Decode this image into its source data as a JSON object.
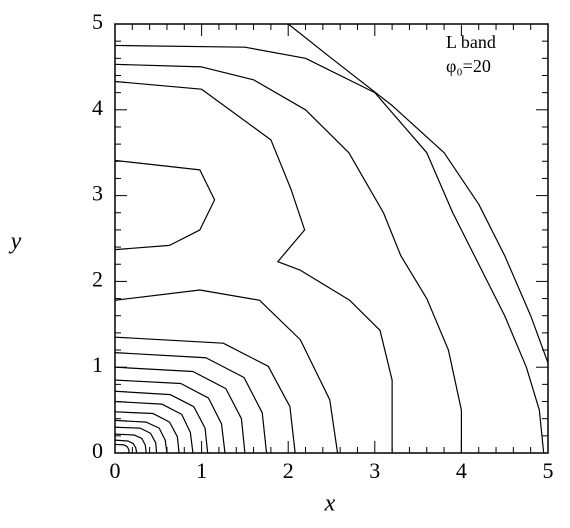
{
  "chart_data": {
    "type": "contour",
    "x_label": "x",
    "y_label": "y",
    "annotations": [
      "L band",
      "φ₀=20"
    ],
    "xlim": [
      0,
      5
    ],
    "ylim": [
      0,
      5
    ],
    "xticks": [
      0,
      1,
      2,
      3,
      4,
      5
    ],
    "yticks": [
      0,
      1,
      2,
      3,
      4,
      5
    ],
    "minor_per_major": 4,
    "color": "#000000",
    "series": [
      {
        "x": [
          2.0,
          2.5,
          3.2,
          3.8,
          4.2,
          4.5,
          4.8,
          5.0
        ],
        "values": [
          5.0,
          4.6,
          4.05,
          3.5,
          2.9,
          2.3,
          1.6,
          1.05
        ]
      },
      {
        "x": [
          0,
          1.5,
          2.2,
          3.0,
          3.6,
          3.9,
          4.2,
          4.5,
          4.75,
          4.9,
          4.95
        ],
        "values": [
          4.75,
          4.73,
          4.6,
          4.2,
          3.5,
          2.8,
          2.2,
          1.6,
          1.0,
          0.5,
          0
        ]
      },
      {
        "x": [
          0,
          1.0,
          1.6,
          2.2,
          2.7,
          3.1,
          3.3,
          3.6,
          3.85,
          4.0,
          4.0
        ],
        "values": [
          4.53,
          4.5,
          4.35,
          4.0,
          3.5,
          2.8,
          2.3,
          1.8,
          1.2,
          0.5,
          0
        ]
      },
      {
        "x": [
          0,
          1.0,
          1.8,
          2.03,
          2.19,
          1.88,
          2.14,
          2.71,
          3.06,
          3.2,
          3.2
        ],
        "values": [
          4.33,
          4.24,
          3.65,
          3.08,
          2.6,
          2.23,
          2.13,
          1.78,
          1.43,
          0.85,
          0
        ]
      },
      {
        "x": [
          0,
          0.98,
          1.15,
          0.98,
          0.63,
          0
        ],
        "values": [
          3.41,
          3.3,
          2.95,
          2.6,
          2.42,
          2.37
        ]
      },
      {
        "x": [
          0,
          0.98,
          1.67,
          2.14,
          2.48,
          2.57
        ],
        "values": [
          1.78,
          1.9,
          1.78,
          1.32,
          0.62,
          0
        ]
      },
      {
        "x": [
          0,
          1.25,
          1.77,
          2.02,
          2.08
        ],
        "values": [
          1.35,
          1.28,
          1.01,
          0.54,
          0
        ]
      },
      {
        "x": [
          0,
          1.05,
          1.49,
          1.7,
          1.75
        ],
        "values": [
          1.17,
          1.11,
          0.88,
          0.47,
          0
        ]
      },
      {
        "x": [
          0,
          0.9,
          1.28,
          1.46,
          1.5
        ],
        "values": [
          1.0,
          0.95,
          0.75,
          0.4,
          0
        ]
      },
      {
        "x": [
          0,
          0.76,
          1.08,
          1.23,
          1.27
        ],
        "values": [
          0.85,
          0.81,
          0.64,
          0.34,
          0
        ]
      },
      {
        "x": [
          0,
          0.64,
          0.91,
          1.04,
          1.07
        ],
        "values": [
          0.72,
          0.68,
          0.54,
          0.29,
          0
        ]
      },
      {
        "x": [
          0,
          0.54,
          0.77,
          0.87,
          0.9
        ],
        "values": [
          0.6,
          0.57,
          0.45,
          0.24,
          0
        ]
      },
      {
        "x": [
          0,
          0.44,
          0.63,
          0.72,
          0.74
        ],
        "values": [
          0.48,
          0.46,
          0.36,
          0.19,
          0
        ]
      },
      {
        "x": [
          0,
          0.36,
          0.51,
          0.58,
          0.6
        ],
        "values": [
          0.38,
          0.36,
          0.29,
          0.15,
          0
        ]
      },
      {
        "x": [
          0,
          0.29,
          0.41,
          0.47,
          0.48
        ],
        "values": [
          0.3,
          0.29,
          0.23,
          0.12,
          0
        ]
      },
      {
        "x": [
          0,
          0.22,
          0.31,
          0.35,
          0.36
        ],
        "values": [
          0.22,
          0.21,
          0.17,
          0.09,
          0
        ]
      },
      {
        "x": [
          0,
          0.15,
          0.21,
          0.24,
          0.25
        ],
        "values": [
          0.15,
          0.14,
          0.11,
          0.06,
          0
        ]
      },
      {
        "x": [
          0,
          0.1,
          0.14,
          0.16,
          0.16
        ],
        "values": [
          0.1,
          0.095,
          0.075,
          0.04,
          0
        ]
      }
    ]
  }
}
